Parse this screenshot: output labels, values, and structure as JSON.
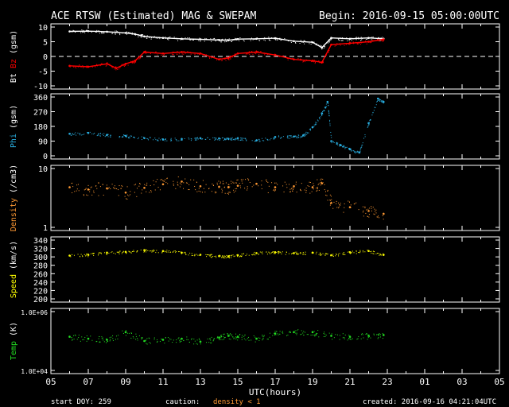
{
  "header": {
    "title": "ACE RTSW (Estimated) MAG & SWEPAM",
    "begin": "Begin: 2016-09-15 05:00:00UTC"
  },
  "footer": {
    "start_doy": "start DOY: 259",
    "caution_label": "caution:",
    "caution_text": "density < 1",
    "created": "created: 2016-09-16 04:21:04UTC"
  },
  "colors": {
    "bt": "#ffffff",
    "bz": "#ff0000",
    "phi": "#29aee0",
    "density": "#ff9933",
    "speed": "#ffff00",
    "temp": "#22dd22",
    "caution": "#ff9933"
  },
  "chart_data": [
    {
      "type": "line",
      "ylabel_parts": [
        "Bt",
        "Bz",
        "(gsm)"
      ],
      "ylim": [
        -10,
        10
      ],
      "yticks": [
        "10",
        "5",
        "0",
        "-5",
        "-10"
      ],
      "reference_line": 0,
      "series": [
        {
          "name": "Bt",
          "x": [
            6.0,
            7.0,
            8.0,
            9.0,
            9.5,
            10.0,
            11.0,
            12.0,
            13.0,
            14.0,
            14.5,
            15.0,
            16.0,
            17.0,
            18.0,
            19.0,
            19.5,
            20.0,
            21.0,
            22.0,
            22.8
          ],
          "y": [
            8.5,
            8.6,
            8.4,
            8.0,
            7.6,
            6.8,
            6.3,
            6.0,
            5.8,
            5.6,
            5.5,
            5.9,
            6.0,
            6.2,
            5.2,
            4.8,
            3.0,
            6.3,
            6.0,
            6.3,
            6.0
          ]
        },
        {
          "name": "Bz",
          "x": [
            6.0,
            7.0,
            8.0,
            8.5,
            9.0,
            9.5,
            10.0,
            11.0,
            12.0,
            13.0,
            14.0,
            14.5,
            15.0,
            16.0,
            17.0,
            18.0,
            19.0,
            19.5,
            20.0,
            21.0,
            22.0,
            22.8
          ],
          "y": [
            -3.2,
            -3.5,
            -2.5,
            -4.0,
            -2.5,
            -1.5,
            1.5,
            1.0,
            1.5,
            1.0,
            -1.0,
            -0.5,
            1.0,
            1.5,
            0.5,
            -1.0,
            -1.5,
            -2.0,
            4.0,
            4.5,
            5.0,
            5.8
          ]
        }
      ],
      "gaps": [
        [
          14.4,
          14.6
        ]
      ]
    },
    {
      "type": "scatter",
      "ylabel_parts": [
        "Phi",
        "(gsm)"
      ],
      "ylim": [
        0,
        360
      ],
      "yticks": [
        "360",
        "270",
        "180",
        "90",
        "0"
      ],
      "series": [
        {
          "name": "Phi",
          "x": [
            6.0,
            7.0,
            8.0,
            9.0,
            10.0,
            11.0,
            12.0,
            13.0,
            14.0,
            14.5,
            15.0,
            16.0,
            17.0,
            18.0,
            18.5,
            19.0,
            19.5,
            19.8,
            20.0,
            20.5,
            21.0,
            21.5,
            22.0,
            22.5,
            22.8
          ],
          "y": [
            135,
            140,
            128,
            122,
            108,
            100,
            103,
            108,
            106,
            104,
            108,
            94,
            115,
            118,
            125,
            175,
            260,
            330,
            90,
            65,
            40,
            20,
            200,
            350,
            330
          ]
        }
      ]
    },
    {
      "type": "scatter",
      "ylabel_parts": [
        "Density",
        "(/cm3)"
      ],
      "ylim": [
        1,
        10
      ],
      "yscale": "log",
      "yticks": [
        "10",
        "1"
      ],
      "series": [
        {
          "name": "Density",
          "x": [
            6.0,
            7.0,
            8.0,
            9.0,
            10.0,
            11.0,
            12.0,
            13.0,
            14.0,
            14.5,
            15.0,
            16.0,
            17.0,
            18.0,
            19.0,
            19.5,
            20.0,
            21.0,
            22.0,
            22.8
          ],
          "y": [
            4.8,
            4.4,
            4.6,
            3.9,
            4.7,
            5.4,
            6.0,
            5.0,
            4.9,
            4.8,
            5.1,
            5.5,
            4.8,
            5.0,
            4.8,
            5.6,
            2.6,
            2.2,
            1.9,
            1.7
          ]
        }
      ]
    },
    {
      "type": "scatter",
      "ylabel_parts": [
        "Speed",
        "(km/s)"
      ],
      "ylim": [
        200,
        340
      ],
      "yticks": [
        "340",
        "320",
        "300",
        "280",
        "260",
        "240",
        "220",
        "200"
      ],
      "series": [
        {
          "name": "Speed",
          "x": [
            6.0,
            7.0,
            8.0,
            9.0,
            10.0,
            11.0,
            12.0,
            13.0,
            14.0,
            14.5,
            15.0,
            16.0,
            17.0,
            18.0,
            19.0,
            20.0,
            21.0,
            22.0,
            22.8
          ],
          "y": [
            303,
            305,
            310,
            312,
            316,
            314,
            310,
            305,
            302,
            301,
            304,
            309,
            311,
            309,
            310,
            304,
            311,
            314,
            305
          ]
        }
      ]
    },
    {
      "type": "scatter",
      "ylabel_parts": [
        "Temp",
        "(K)"
      ],
      "ylim": [
        10000,
        1000000
      ],
      "yscale": "log",
      "yticks": [
        "1.0E+06",
        "1.0E+04"
      ],
      "series": [
        {
          "name": "Temp",
          "x": [
            6.0,
            7.0,
            8.0,
            9.0,
            10.0,
            11.0,
            12.0,
            13.0,
            14.0,
            14.5,
            15.0,
            16.0,
            17.0,
            18.0,
            19.0,
            20.0,
            21.0,
            22.0,
            22.8
          ],
          "y": [
            140000,
            120000,
            110000,
            200000,
            100000,
            110000,
            120000,
            95000,
            130000,
            150000,
            140000,
            120000,
            180000,
            200000,
            200000,
            150000,
            140000,
            150000,
            160000
          ]
        }
      ]
    }
  ],
  "xaxis": {
    "label": "UTC(hours)",
    "range": [
      5,
      29
    ],
    "tick_labels": [
      "05",
      "07",
      "09",
      "11",
      "13",
      "15",
      "17",
      "19",
      "21",
      "23",
      "01",
      "03",
      "05"
    ]
  }
}
